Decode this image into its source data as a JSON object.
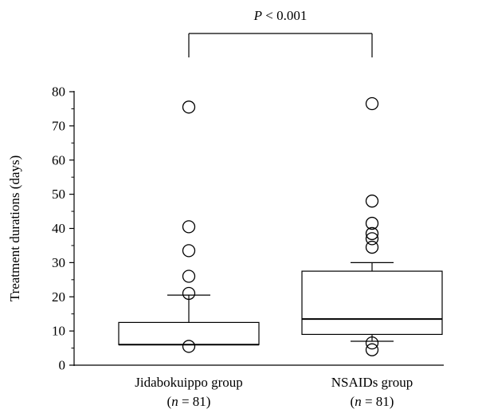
{
  "chart_data": {
    "type": "box",
    "ylabel": "Treatment durations (days)",
    "ylim": [
      0,
      80
    ],
    "yticks": [
      0,
      10,
      20,
      30,
      40,
      50,
      60,
      70,
      80
    ],
    "significance": {
      "prefix": "P",
      "text": " < 0.001"
    },
    "groups": [
      {
        "label": "Jidabokuippo group",
        "n_var": "n",
        "n_text": " = 81)",
        "q1": 6,
        "median": 6,
        "q3": 12.5,
        "whisker_low": 6,
        "whisker_high": 20.5,
        "outliers": [
          5.5,
          21,
          26,
          33.5,
          40.5,
          75.5
        ]
      },
      {
        "label": "NSAIDs group",
        "n_var": "n",
        "n_text": " = 81)",
        "q1": 9,
        "median": 13.5,
        "q3": 27.5,
        "whisker_low": 7,
        "whisker_high": 30,
        "outliers": [
          4.5,
          6.5,
          34.5,
          37,
          38.5,
          41.5,
          48,
          76.5
        ]
      }
    ]
  }
}
